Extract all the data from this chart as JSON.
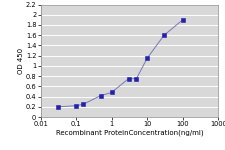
{
  "x": [
    0.032,
    0.1,
    0.16,
    0.5,
    1.0,
    3.0,
    5.0,
    10.0,
    30.0,
    100.0
  ],
  "y": [
    0.2,
    0.22,
    0.25,
    0.42,
    0.48,
    0.75,
    0.75,
    1.15,
    1.6,
    1.9
  ],
  "line_color": "#7777bb",
  "marker_color": "#2222aa",
  "marker": "s",
  "marker_size": 2.5,
  "line_width": 0.7,
  "xlabel": "Recombinant ProteinConcentration(ng/ml)",
  "ylabel": "OD 450",
  "xlim": [
    0.01,
    1000
  ],
  "ylim": [
    0,
    2.2
  ],
  "yticks": [
    0,
    0.2,
    0.4,
    0.6,
    0.8,
    1.0,
    1.2,
    1.4,
    1.6,
    1.8,
    2.0,
    2.2
  ],
  "xticks": [
    0.01,
    0.1,
    1,
    10,
    100,
    1000
  ],
  "xtick_labels": [
    "0.01",
    "0.1",
    "1",
    "10",
    "100",
    "1000"
  ],
  "background_color": "#d8d8d8",
  "fig_background": "#ffffff",
  "xlabel_fontsize": 5.0,
  "ylabel_fontsize": 5.0,
  "tick_fontsize": 4.8,
  "grid_color": "#ffffff",
  "grid_linewidth": 0.7
}
